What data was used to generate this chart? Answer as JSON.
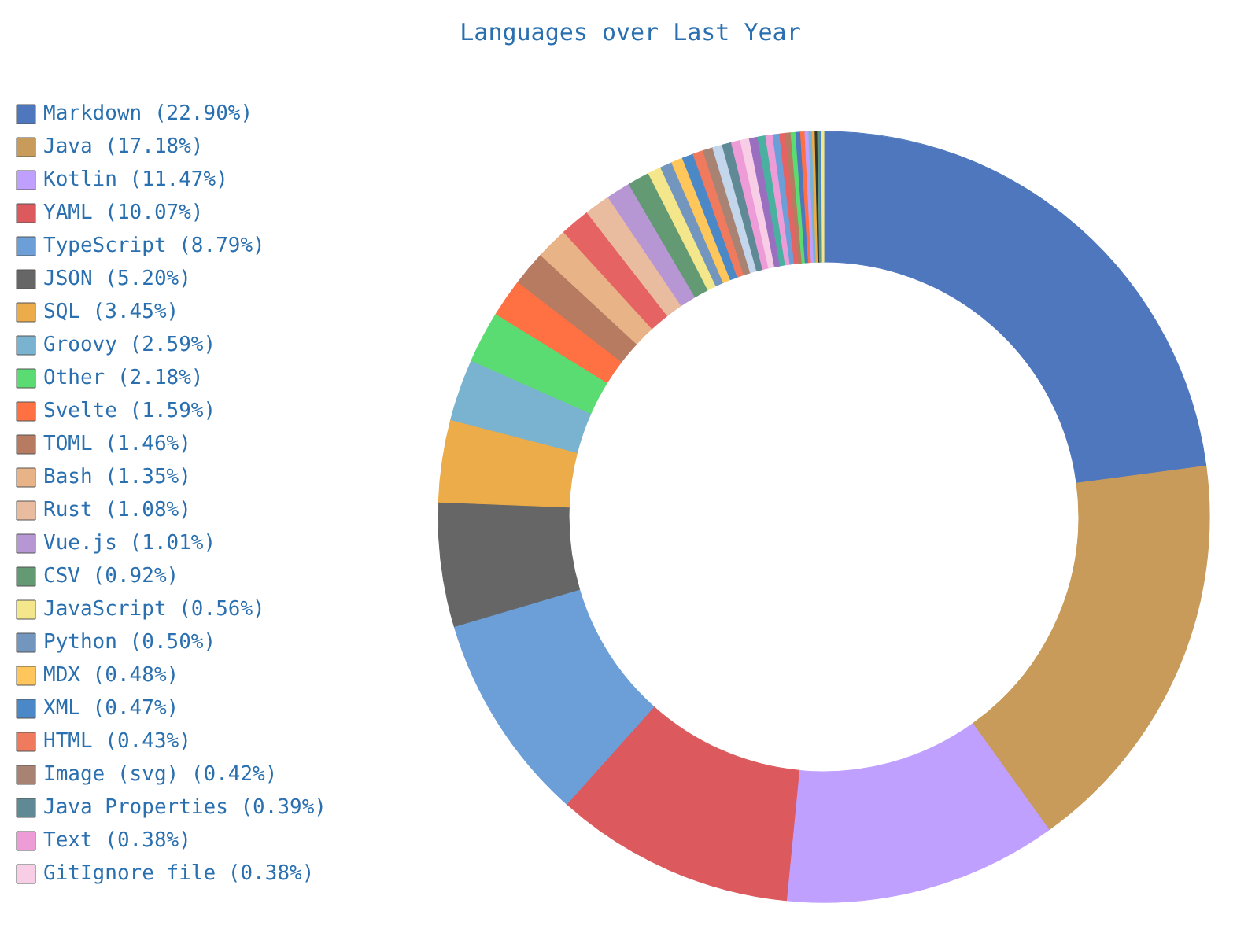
{
  "chart_data": {
    "type": "donut",
    "title": "Languages over Last Year",
    "legend": "left",
    "categories": [
      "Markdown (22.90%)",
      "Java (17.18%)",
      "Kotlin (11.47%)",
      "YAML (10.07%)",
      "TypeScript (8.79%)",
      "JSON (5.20%)",
      "SQL (3.45%)",
      "Groovy (2.59%)",
      "Other (2.18%)",
      "Svelte (1.59%)",
      "TOML (1.46%)",
      "Bash (1.35%)",
      null,
      "Rust (1.08%)",
      "Vue.js (1.01%)",
      "CSV (0.92%)",
      "JavaScript (0.56%)",
      "Python (0.50%)",
      "MDX (0.48%)",
      "XML (0.47%)",
      "HTML (0.43%)",
      "Image (svg) (0.42%)",
      null,
      "Java Properties (0.39%)",
      "Text (0.38%)",
      "GitIgnore file (0.38%)",
      null,
      null,
      null,
      null,
      null,
      null,
      null,
      null,
      null,
      null,
      null,
      null,
      null,
      null,
      null,
      null
    ],
    "values": [
      22.9,
      17.18,
      11.47,
      10.07,
      8.79,
      5.2,
      3.45,
      2.59,
      2.18,
      1.59,
      1.46,
      1.35,
      1.25,
      1.08,
      1.01,
      0.92,
      0.56,
      0.5,
      0.48,
      0.47,
      0.43,
      0.42,
      0.41,
      0.39,
      0.38,
      0.38,
      0.35,
      0.33,
      0.3,
      0.28,
      0.25,
      0.22,
      0.2,
      0.2,
      0.18,
      0.16,
      0.14,
      0.12,
      0.1,
      0.09,
      0.08,
      0.09
    ],
    "colors": [
      "#4f77be",
      "#c89b5a",
      "#c0a0ff",
      "#dc5a5e",
      "#6c9fd8",
      "#666666",
      "#ebac49",
      "#7ab3cf",
      "#5bdc72",
      "#ff7043",
      "#b77b62",
      "#e8b386",
      "#e56363",
      "#e9bca0",
      "#b796d4",
      "#639a74",
      "#f4e68a",
      "#7296be",
      "#ffc65c",
      "#4a88c8",
      "#f07a5e",
      "#a88373",
      "#c3d6ec",
      "#5f8a95",
      "#ee9cd8",
      "#f8cde6",
      "#9a6fc0",
      "#4ab0a0",
      "#ee9cd8",
      "#6c9fd8",
      "#e56363",
      "#b77b62",
      "#5bdc72",
      "#4f77be",
      "#ff7043",
      "#c0a0ff",
      "#7ab3cf",
      "#ebac49",
      "#333333",
      "#639a74",
      "#4a88c8",
      "#f4e68a"
    ]
  }
}
